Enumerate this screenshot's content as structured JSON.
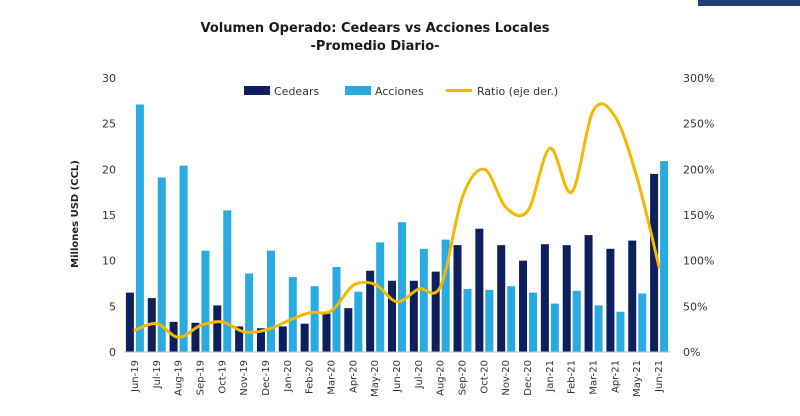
{
  "chart_data": {
    "type": "bar",
    "title": "Volumen Operado: Cedears vs Acciones Locales",
    "subtitle": "-Promedio Diario-",
    "ylabel": "Millones USD (CCL)",
    "ylim": [
      0,
      30
    ],
    "y_ticks": [
      "0",
      "5",
      "10",
      "15",
      "20",
      "25",
      "30"
    ],
    "y2lim": [
      0,
      300
    ],
    "y2_ticks": [
      "0%",
      "50%",
      "100%",
      "150%",
      "200%",
      "250%",
      "300%"
    ],
    "categories": [
      "Jun-19",
      "Jul-19",
      "Aug-19",
      "Sep-19",
      "Oct-19",
      "Nov-19",
      "Dec-19",
      "Jan-20",
      "Feb-20",
      "Mar-20",
      "Apr-20",
      "May-20",
      "Jun-20",
      "Jul-20",
      "Aug-20",
      "Sep-20",
      "Oct-20",
      "Nov-20",
      "Dec-20",
      "Jan-21",
      "Feb-21",
      "Mar-21",
      "Apr-21",
      "May-21",
      "Jun-21"
    ],
    "series": [
      {
        "name": "Cedears",
        "type": "bar",
        "axis": "left",
        "color": "#0d1f5c",
        "values": [
          6.5,
          5.9,
          3.3,
          3.2,
          5.1,
          2.8,
          2.6,
          2.8,
          3.1,
          4.2,
          4.8,
          8.9,
          7.8,
          7.8,
          8.8,
          11.7,
          13.5,
          11.7,
          10.0,
          11.8,
          11.7,
          12.8,
          11.3,
          12.2,
          19.5
        ]
      },
      {
        "name": "Acciones",
        "type": "bar",
        "axis": "left",
        "color": "#29abe2",
        "values": [
          27.1,
          19.1,
          20.4,
          11.1,
          15.5,
          8.6,
          11.1,
          8.2,
          7.2,
          9.3,
          6.6,
          12.0,
          14.2,
          11.3,
          12.3,
          6.9,
          6.8,
          7.2,
          6.5,
          5.3,
          6.7,
          5.1,
          4.4,
          6.4,
          20.9
        ]
      },
      {
        "name": "Ratio (eje der.)",
        "type": "line",
        "axis": "right",
        "color": "#f5b800",
        "values": [
          24,
          31,
          16,
          29,
          33,
          22,
          24,
          34,
          43,
          45,
          73,
          74,
          55,
          69,
          72,
          170,
          200,
          158,
          155,
          223,
          175,
          265,
          257,
          190,
          93
        ]
      }
    ],
    "legend_position": "top"
  }
}
